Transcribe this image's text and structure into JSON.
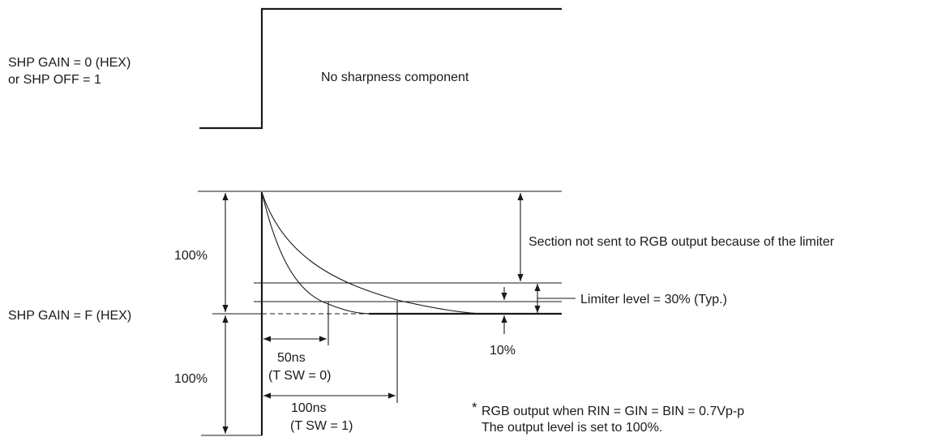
{
  "top": {
    "condition_line1": "SHP GAIN = 0 (HEX)",
    "condition_line2": "or SHP OFF = 1",
    "caption": "No sharpness component"
  },
  "bottom": {
    "condition": "SHP GAIN = F (HEX)",
    "upper_percent": "100%",
    "lower_percent": "100%",
    "section_note": "Section not sent to RGB output because of the limiter",
    "limiter_level": "Limiter level = 30% (Typ.)",
    "ten_percent": "10%",
    "t50_value": "50ns",
    "t50_condition": "(T SW = 0)",
    "t100_value": "100ns",
    "t100_condition": "(T SW = 1)",
    "footnote_mark": "*",
    "footnote_line1": "RGB output when RIN = GIN = BIN = 0.7Vp-p",
    "footnote_line2": "The output level is set to 100%."
  }
}
